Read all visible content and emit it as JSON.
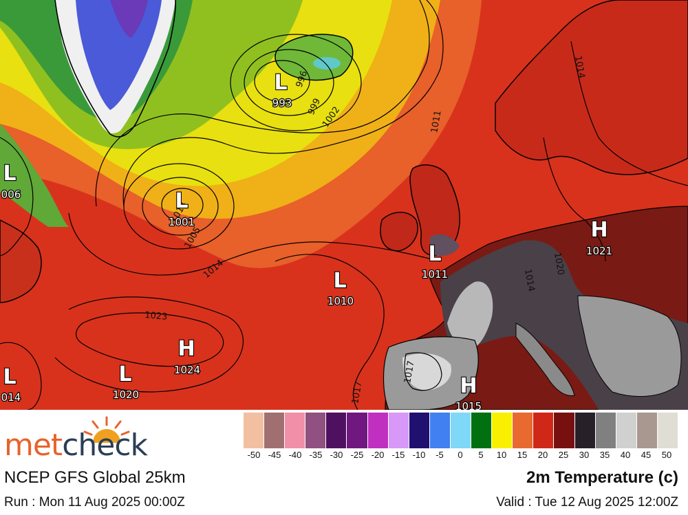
{
  "map": {
    "pressure_centers": [
      {
        "type": "L",
        "value": "993"
      },
      {
        "type": "L",
        "value": "006"
      },
      {
        "type": "L",
        "value": "1001"
      },
      {
        "type": "H",
        "value": "1021"
      },
      {
        "type": "L",
        "value": "1011"
      },
      {
        "type": "L",
        "value": "1010"
      },
      {
        "type": "H",
        "value": "1024"
      },
      {
        "type": "L",
        "value": "1020"
      },
      {
        "type": "L",
        "value": "014"
      },
      {
        "type": "H",
        "value": "1015"
      }
    ],
    "isobar_labels": [
      "996",
      "999",
      "1002",
      "1011",
      "1014",
      "1005",
      "1014",
      "1023",
      "1017",
      "1017",
      "1020",
      "1014",
      "1014"
    ]
  },
  "footer": {
    "brand_part1": "met",
    "brand_part2": "check",
    "model": "NCEP GFS Global 25km",
    "run": "Run : Mon 11 Aug 2025 00:00Z",
    "parameter": "2m Temperature (c)",
    "valid": "Valid : Tue 12 Aug 2025 12:00Z"
  },
  "legend": {
    "ticks": [
      "-50",
      "-45",
      "-40",
      "-35",
      "-30",
      "-25",
      "-20",
      "-15",
      "-10",
      "-5",
      "0",
      "5",
      "10",
      "15",
      "20",
      "25",
      "30",
      "35",
      "40",
      "45",
      "50"
    ],
    "colors": [
      "#f2c0a0",
      "#a07070",
      "#f090a8",
      "#905080",
      "#501060",
      "#701880",
      "#c030c0",
      "#d898f8",
      "#201070",
      "#4080f0",
      "#80d8f8",
      "#007010",
      "#f8f000",
      "#e86a30",
      "#d02818",
      "#781010",
      "#282028",
      "#808080",
      "#d0d0d0",
      "#a89890",
      "#e0ddd5"
    ]
  }
}
